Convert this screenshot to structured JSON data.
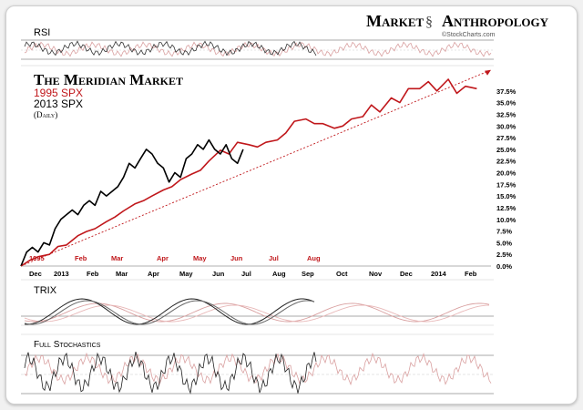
{
  "brand": {
    "left": "Market",
    "right": "Anthropology",
    "credit": "©StockCharts.com"
  },
  "colors": {
    "spx1995": "#c0171b",
    "spx2013": "#000000",
    "trend": "#c0171b",
    "panel_line": "#9a9a9a",
    "ind_light": "#d9a0a0"
  },
  "chart_data": {
    "type": "line",
    "title": "The Meridian Market",
    "legend": [
      "1995 SPX",
      "2013 SPX",
      "(Daily)"
    ],
    "ylim": [
      0,
      40
    ],
    "y_ticks": [
      "0.0%",
      "2.5%",
      "5.0%",
      "7.5%",
      "10.0%",
      "12.5%",
      "15.0%",
      "17.5%",
      "20.0%",
      "22.5%",
      "25.0%",
      "27.5%",
      "30.0%",
      "32.5%",
      "35.0%",
      "37.5%"
    ],
    "y_tick_values": [
      0,
      2.5,
      5,
      7.5,
      10,
      12.5,
      15,
      17.5,
      20,
      22.5,
      25,
      27.5,
      30,
      32.5,
      35,
      37.5
    ],
    "x_labels_1995": [
      "1995",
      "Feb",
      "Mar",
      "Apr",
      "May",
      "Jun",
      "Jul",
      "Aug"
    ],
    "x_labels_2013": [
      "Dec",
      "2013",
      "Feb",
      "Mar",
      "Apr",
      "May",
      "Jun",
      "Jul",
      "Aug",
      "Sep",
      "Oct",
      "Nov",
      "Dec",
      "2014",
      "Feb"
    ],
    "x_unit": "month index from Dec 2012 start",
    "series": [
      {
        "name": "1995 SPX",
        "x": [
          0,
          0.3,
          0.6,
          1.0,
          1.3,
          1.6,
          2.0,
          2.3,
          2.6,
          3.0,
          3.3,
          3.6,
          4.0,
          4.3,
          4.6,
          5.0,
          5.3,
          5.6,
          6.0,
          6.3,
          6.6,
          7.0,
          7.3,
          7.6,
          8.0,
          8.3,
          8.6,
          9.0,
          9.3,
          9.6,
          10.0,
          10.3,
          10.6,
          11.0,
          11.3,
          11.6,
          12.0,
          12.3,
          12.6,
          13.0,
          13.3,
          13.6,
          14.0,
          14.3,
          14.6,
          15.0,
          15.3,
          15.6,
          16.0
        ],
        "values": [
          0,
          1.2,
          2.0,
          2.5,
          4.2,
          4.5,
          6.5,
          7.4,
          8.0,
          9.5,
          10.5,
          11.8,
          13.3,
          14.0,
          15.0,
          16.3,
          17.0,
          18.5,
          19.7,
          20.5,
          22.5,
          24.8,
          24.0,
          26.5,
          26.0,
          25.5,
          26.5,
          27.0,
          28.5,
          31.0,
          31.5,
          30.5,
          30.5,
          29.5,
          30.0,
          31.5,
          32.0,
          34.5,
          33.0,
          36.0,
          35.0,
          38.0,
          38.0,
          39.5,
          37.5,
          40.0,
          37.0,
          38.5,
          38.0
        ]
      },
      {
        "name": "2013 SPX",
        "x": [
          0,
          0.2,
          0.4,
          0.6,
          0.8,
          1.0,
          1.2,
          1.4,
          1.6,
          1.8,
          2.0,
          2.2,
          2.4,
          2.6,
          2.8,
          3.0,
          3.2,
          3.4,
          3.6,
          3.8,
          4.0,
          4.2,
          4.4,
          4.6,
          4.8,
          5.0,
          5.2,
          5.4,
          5.6,
          5.8,
          6.0,
          6.2,
          6.4,
          6.6,
          6.8,
          7.0,
          7.2,
          7.4,
          7.6,
          7.8
        ],
        "values": [
          0,
          3,
          4,
          3,
          5,
          4.5,
          8,
          10,
          11,
          12,
          11,
          13,
          14,
          13,
          16,
          15,
          16,
          17,
          19,
          22,
          21,
          23,
          25,
          24,
          22,
          21,
          18,
          20,
          19,
          23,
          24,
          26,
          25,
          27,
          25,
          24,
          26,
          23,
          22,
          25
        ]
      },
      {
        "name": "trend",
        "x": [
          0,
          16.5
        ],
        "values": [
          0,
          42
        ]
      }
    ]
  },
  "rsi": {
    "label": "RSI"
  },
  "trix": {
    "label": "TRIX"
  },
  "stoch": {
    "label": "Full Stochastics"
  }
}
